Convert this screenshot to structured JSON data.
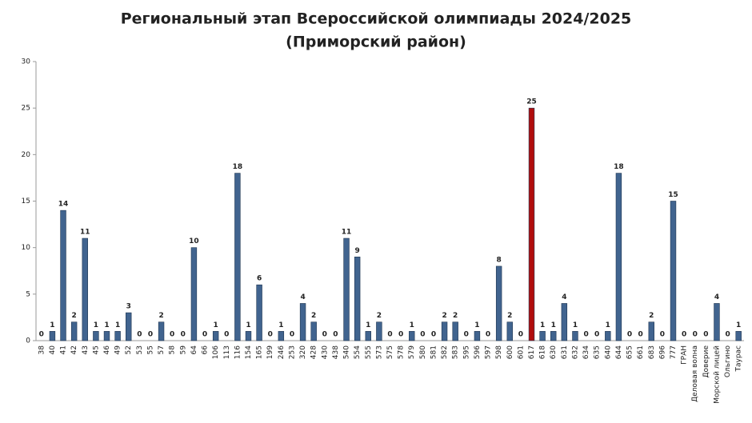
{
  "chart_data": {
    "type": "bar",
    "title": "Региональный этап Всероссийской олимпиады 2024/2025",
    "subtitle": "(Приморский район)",
    "categories": [
      "38",
      "40",
      "41",
      "42",
      "43",
      "45",
      "46",
      "49",
      "52",
      "53",
      "55",
      "57",
      "58",
      "59",
      "64",
      "66",
      "106",
      "113",
      "116",
      "154",
      "165",
      "199",
      "246",
      "253",
      "320",
      "428",
      "430",
      "438",
      "540",
      "554",
      "555",
      "573",
      "575",
      "578",
      "579",
      "580",
      "581",
      "582",
      "583",
      "595",
      "596",
      "597",
      "598",
      "600",
      "601",
      "617",
      "618",
      "630",
      "631",
      "632",
      "634",
      "635",
      "640",
      "644",
      "655",
      "661",
      "683",
      "696",
      "777",
      "ГРАН",
      "Деловая волна",
      "Доверие",
      "Морской лицей",
      "Ольгино",
      "Таурас"
    ],
    "values": [
      0,
      1,
      14,
      2,
      11,
      1,
      1,
      1,
      3,
      0,
      0,
      2,
      0,
      0,
      10,
      0,
      1,
      0,
      18,
      1,
      6,
      0,
      1,
      0,
      4,
      2,
      0,
      0,
      11,
      9,
      1,
      2,
      0,
      0,
      1,
      0,
      0,
      2,
      2,
      0,
      1,
      0,
      8,
      2,
      0,
      25,
      1,
      1,
      4,
      1,
      0,
      0,
      1,
      18,
      0,
      0,
      2,
      0,
      15,
      0,
      0,
      0,
      4,
      0,
      1
    ],
    "color": "#41648f",
    "highlight": {
      "category": "617",
      "color": "#b00d0d"
    },
    "ylim": [
      0,
      30
    ],
    "yticks": [
      0,
      5,
      10,
      15,
      20,
      25,
      30
    ],
    "grid": false
  }
}
